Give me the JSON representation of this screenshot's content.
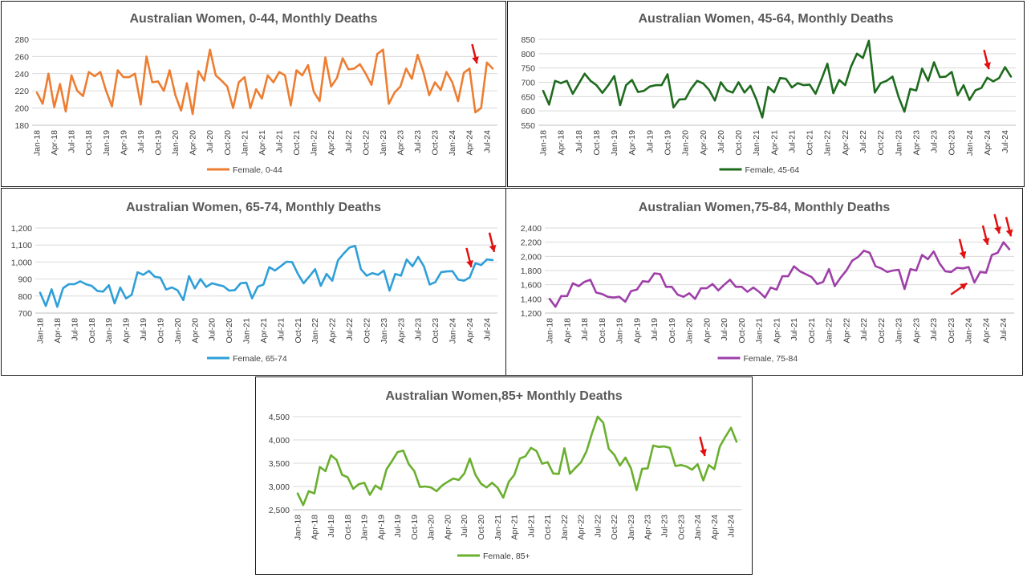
{
  "x_labels": [
    "Jan-18",
    "Apr-18",
    "Jul-18",
    "Oct-18",
    "Jan-19",
    "Apr-19",
    "Jul-19",
    "Oct-19",
    "Jan-20",
    "Apr-20",
    "Jul-20",
    "Oct-20",
    "Jan-21",
    "Apr-21",
    "Jul-21",
    "Oct-21",
    "Jan-22",
    "Apr-22",
    "Jul-22",
    "Oct-22",
    "Jan-23",
    "Apr-23",
    "Jul-23",
    "Oct-23",
    "Jan-24",
    "Apr-24",
    "Jul-24"
  ],
  "chart_data": [
    {
      "type": "line",
      "title": "Australian Women, 0-44, Monthly Deaths",
      "ylim": [
        180,
        280
      ],
      "y_ticks": [
        "180",
        "200",
        "220",
        "240",
        "260",
        "280"
      ],
      "x_tick_labels": [
        "Jan-18",
        "Apr-18",
        "Jul-18",
        "Oct-18",
        "Jan-19",
        "Apr-19",
        "Jul-19",
        "Oct-19",
        "Jan-20",
        "Apr-20",
        "Jul-20",
        "Oct-20",
        "Jan-21",
        "Apr-21",
        "Jul-21",
        "Oct-21",
        "Jan-22",
        "Apr-22",
        "Jul-22",
        "Oct-22",
        "Jan-23",
        "Apr-23",
        "Jul-23",
        "Oct-23",
        "Jan-24",
        "Apr-24",
        "Jul-24"
      ],
      "series": [
        {
          "name": "Female, 0-44",
          "color": "#ED7D31",
          "values": [
            218,
            205,
            240,
            201,
            228,
            196,
            238,
            220,
            214,
            242,
            237,
            242,
            220,
            202,
            244,
            236,
            236,
            240,
            204,
            260,
            230,
            231,
            220,
            244,
            215,
            197,
            229,
            193,
            243,
            232,
            268,
            238,
            232,
            225,
            200,
            230,
            236,
            200,
            222,
            211,
            238,
            230,
            242,
            238,
            203,
            244,
            238,
            250,
            219,
            208,
            259,
            225,
            235,
            258,
            245,
            246,
            251,
            240,
            227,
            263,
            268,
            205,
            218,
            225,
            246,
            234,
            262,
            242,
            215,
            230,
            221,
            242,
            230,
            208,
            241,
            246,
            195,
            200,
            253,
            246
          ]
        }
      ],
      "arrows": [
        {
          "month_index": 76,
          "y_value": 250
        }
      ]
    },
    {
      "type": "line",
      "title": "Australian Women, 45-64, Monthly Deaths",
      "ylim": [
        550,
        850
      ],
      "y_ticks": [
        "550",
        "600",
        "650",
        "700",
        "750",
        "800",
        "850"
      ],
      "x_tick_labels": [
        "Jan-18",
        "Apr-18",
        "Jul-18",
        "Oct-18",
        "Jan-19",
        "Apr-19",
        "Jul-19",
        "Oct-19",
        "Jan-20",
        "Apr-20",
        "Jul-20",
        "Oct-20",
        "Jan-21",
        "Apr-21",
        "Jul-21",
        "Oct-21",
        "Jan-22",
        "Apr-22",
        "Jul-22",
        "Oct-22",
        "Jan-23",
        "Apr-23",
        "Jul-23",
        "Oct-23",
        "Jan-24",
        "Apr-24",
        "Jul-24"
      ],
      "series": [
        {
          "name": "Female, 45-64",
          "color": "#1E6B1E",
          "values": [
            670,
            622,
            705,
            697,
            705,
            660,
            695,
            730,
            705,
            690,
            663,
            690,
            722,
            620,
            690,
            708,
            666,
            670,
            685,
            690,
            690,
            728,
            612,
            640,
            641,
            678,
            705,
            696,
            674,
            636,
            700,
            672,
            664,
            700,
            664,
            688,
            640,
            577,
            684,
            665,
            715,
            712,
            682,
            697,
            690,
            692,
            660,
            710,
            765,
            662,
            708,
            690,
            755,
            800,
            785,
            845,
            664,
            697,
            705,
            720,
            650,
            597,
            677,
            671,
            748,
            705,
            770,
            718,
            720,
            736,
            655,
            690,
            638,
            672,
            680,
            716,
            703,
            715,
            753,
            720
          ]
        }
      ],
      "arrows": [
        {
          "month_index": 75,
          "y_value": 740
        }
      ]
    },
    {
      "type": "line",
      "title": "Australian Women, 65-74, Monthly Deaths",
      "ylim": [
        700,
        1200
      ],
      "y_ticks": [
        "700",
        "800",
        "900",
        "1,000",
        "1,100",
        "1,200"
      ],
      "x_tick_labels": [
        "Jan-18",
        "Apr-18",
        "Jul-18",
        "Oct-18",
        "Jan-19",
        "Apr-19",
        "Jul-19",
        "Oct-19",
        "Jan-20",
        "Apr-20",
        "Jul-20",
        "Oct-20",
        "Jan-21",
        "Apr-21",
        "Jul-21",
        "Oct-21",
        "Jan-22",
        "Apr-22",
        "Jul-22",
        "Oct-22",
        "Jan-23",
        "Apr-23",
        "Jul-23",
        "Oct-23",
        "Jan-24",
        "Apr-24",
        "Jul-24"
      ],
      "series": [
        {
          "name": "Female, 65-74",
          "color": "#2E9FD8",
          "values": [
            820,
            742,
            840,
            737,
            846,
            870,
            870,
            887,
            870,
            860,
            830,
            826,
            864,
            757,
            850,
            786,
            808,
            940,
            925,
            948,
            914,
            908,
            838,
            851,
            834,
            776,
            917,
            845,
            900,
            854,
            875,
            866,
            858,
            832,
            835,
            875,
            879,
            787,
            855,
            868,
            970,
            950,
            975,
            1002,
            1000,
            930,
            875,
            915,
            958,
            860,
            930,
            890,
            1010,
            1050,
            1085,
            1095,
            958,
            920,
            935,
            925,
            950,
            832,
            930,
            920,
            1015,
            975,
            1030,
            975,
            868,
            882,
            940,
            945,
            946,
            896,
            890,
            910,
            993,
            982,
            1015,
            1012
          ]
        }
      ],
      "arrows": [
        {
          "month_index": 75,
          "y_value": 960
        },
        {
          "month_index": 79,
          "y_value": 1050
        }
      ]
    },
    {
      "type": "line",
      "title": "Australian Women,75-84, Monthly Deaths",
      "ylim": [
        1200,
        2400
      ],
      "y_ticks": [
        "1,200",
        "1,400",
        "1,600",
        "1,800",
        "2,000",
        "2,200",
        "2,400"
      ],
      "x_tick_labels": [
        "Jan-18",
        "Apr-18",
        "Jul-18",
        "Oct-18",
        "Jan-19",
        "Apr-19",
        "Jul-19",
        "Oct-19",
        "Jan-20",
        "Apr-20",
        "Jul-20",
        "Oct-20",
        "Jan-21",
        "Apr-21",
        "Jul-21",
        "Oct-21",
        "Jan-22",
        "Apr-22",
        "Jul-22",
        "Oct-22",
        "Jan-23",
        "Apr-23",
        "Jul-23",
        "Oct-23",
        "Jan-24",
        "Apr-24",
        "Jul-24"
      ],
      "series": [
        {
          "name": "Female, 75-84",
          "color": "#9E3FA8",
          "values": [
            1400,
            1290,
            1440,
            1440,
            1620,
            1580,
            1640,
            1670,
            1490,
            1470,
            1430,
            1420,
            1430,
            1360,
            1510,
            1530,
            1650,
            1640,
            1760,
            1750,
            1570,
            1570,
            1460,
            1430,
            1480,
            1400,
            1550,
            1550,
            1610,
            1520,
            1600,
            1670,
            1570,
            1570,
            1500,
            1560,
            1500,
            1420,
            1560,
            1530,
            1720,
            1720,
            1860,
            1790,
            1750,
            1710,
            1610,
            1640,
            1820,
            1580,
            1700,
            1800,
            1940,
            1990,
            2080,
            2050,
            1860,
            1830,
            1780,
            1800,
            1810,
            1540,
            1820,
            1800,
            2020,
            1960,
            2070,
            1900,
            1790,
            1780,
            1840,
            1830,
            1850,
            1630,
            1780,
            1770,
            2020,
            2050,
            2200,
            2100
          ]
        }
      ],
      "arrows": [
        {
          "month_index": 71,
          "y_value": 1950
        },
        {
          "month_index": 75,
          "y_value": 2140
        },
        {
          "month_index": 77,
          "y_value": 2300
        },
        {
          "month_index": 79,
          "y_value": 2260
        },
        {
          "month_index": 72,
          "y_value": 1620,
          "direction": "up"
        }
      ]
    },
    {
      "type": "line",
      "title": "Australian Women,85+ Monthly Deaths",
      "ylim": [
        2500,
        4500
      ],
      "y_ticks": [
        "2,500",
        "3,000",
        "3,500",
        "4,000",
        "4,500"
      ],
      "x_tick_labels": [
        "Jan-18",
        "Apr-18",
        "Jul-18",
        "Oct-18",
        "Jan-19",
        "Apr-19",
        "Jul-19",
        "Oct-19",
        "Jan-20",
        "Apr-20",
        "Jul-20",
        "Oct-20",
        "Jan-21",
        "Apr-21",
        "Jul-21",
        "Oct-21",
        "Jan-22",
        "Apr-22",
        "Jul-22",
        "Oct-22",
        "Jan-23",
        "Apr-23",
        "Jul-23",
        "Oct-23",
        "Jan-24",
        "Apr-24",
        "Jul-24"
      ],
      "series": [
        {
          "name": "Female, 85+",
          "color": "#6AAF2E",
          "values": [
            2850,
            2600,
            2900,
            2850,
            3420,
            3330,
            3670,
            3570,
            3250,
            3200,
            2950,
            3050,
            3080,
            2820,
            3020,
            2940,
            3370,
            3550,
            3740,
            3770,
            3480,
            3330,
            2990,
            3000,
            2980,
            2900,
            3020,
            3100,
            3170,
            3140,
            3280,
            3600,
            3250,
            3060,
            2980,
            3080,
            2970,
            2760,
            3100,
            3250,
            3600,
            3650,
            3830,
            3760,
            3490,
            3520,
            3280,
            3270,
            3820,
            3270,
            3400,
            3520,
            3760,
            4150,
            4500,
            4370,
            3810,
            3680,
            3450,
            3620,
            3390,
            2920,
            3380,
            3390,
            3880,
            3850,
            3860,
            3830,
            3440,
            3460,
            3430,
            3360,
            3480,
            3130,
            3460,
            3370,
            3860,
            4070,
            4260,
            3960
          ]
        }
      ],
      "arrows": [
        {
          "month_index": 73,
          "y_value": 3620
        }
      ]
    }
  ]
}
